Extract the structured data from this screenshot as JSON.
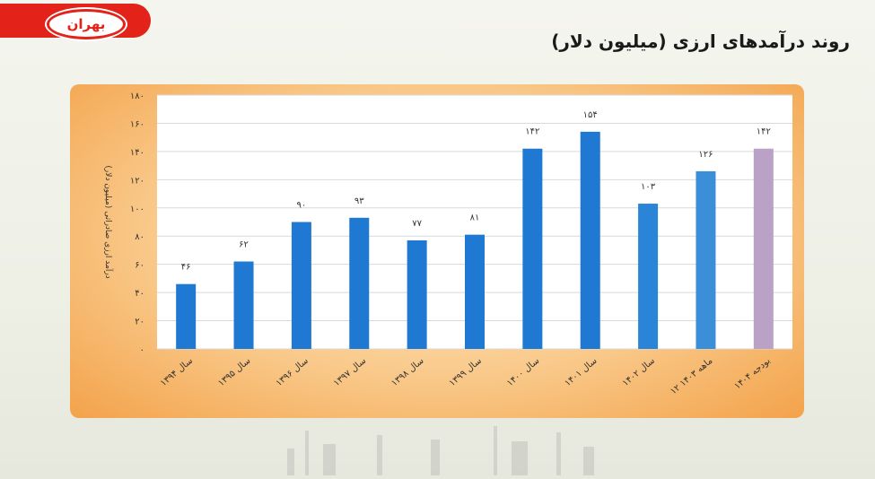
{
  "header": {
    "logo_text": "بهران",
    "title": "روند درآمدهای ارزی (میلیون دلار)"
  },
  "chart_data": {
    "type": "bar",
    "title": "روند درآمدهای ارزی (میلیون دلار)",
    "ylabel": "درآمد ارزی صادراتی (میلیون دلار)",
    "xlabel": "",
    "ylim": [
      0,
      180
    ],
    "yticks": [
      0,
      20,
      40,
      60,
      80,
      100,
      120,
      140,
      160,
      180
    ],
    "ytick_labels": [
      "۰",
      "۲۰",
      "۴۰",
      "۶۰",
      "۸۰",
      "۱۰۰",
      "۱۲۰",
      "۱۴۰",
      "۱۶۰",
      "۱۸۰"
    ],
    "grid": true,
    "categories": [
      "سال ۱۳۹۴",
      "سال ۱۳۹۵",
      "سال ۱۳۹۶",
      "سال ۱۳۹۷",
      "سال ۱۳۹۸",
      "سال ۱۳۹۹",
      "سال ۱۴۰۰",
      "سال ۱۴۰۱",
      "سال ۱۴۰۲",
      "۱۲ ماهه ۱۴۰۳",
      "بودجه ۱۴۰۴"
    ],
    "values": [
      46,
      62,
      90,
      93,
      77,
      81,
      142,
      154,
      103,
      126,
      142
    ],
    "value_labels": [
      "۴۶",
      "۶۲",
      "۹۰",
      "۹۳",
      "۷۷",
      "۸۱",
      "۱۴۲",
      "۱۵۴",
      "۱۰۳",
      "۱۲۶",
      "۱۴۲"
    ],
    "colors": [
      "#1f78d1",
      "#1f78d1",
      "#1f78d1",
      "#1f78d1",
      "#1f78d1",
      "#1f78d1",
      "#1f78d1",
      "#1f78d1",
      "#2a85d8",
      "#3a8fd8",
      "#b9a2c6"
    ]
  }
}
